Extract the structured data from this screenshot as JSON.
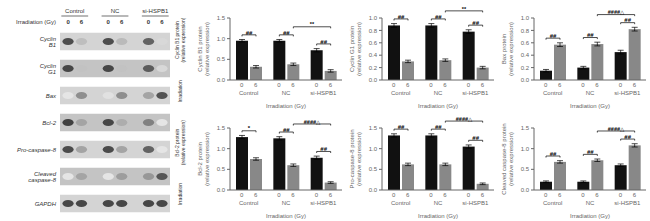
{
  "chart_data": [
    {
      "type": "heatmap",
      "xlabel": "Irradiation (Gy)",
      "categories": [
        "Control",
        "NC",
        "si-HSPB1"
      ],
      "lanes": [
        "0",
        "6"
      ],
      "rows": [
        "Cyclin B1",
        "Cyclin G1",
        "Bax",
        "Bcl-2",
        "Pro-caspase-8",
        "Cleaved caspase-8",
        "GAPDH"
      ],
      "cells": [
        [
          0.82,
          0.3,
          0.82,
          0.32,
          0.72,
          0.18
        ],
        [
          0.85,
          0.28,
          0.85,
          0.28,
          0.75,
          0.18
        ],
        [
          0.12,
          0.52,
          0.14,
          0.52,
          0.42,
          0.8
        ],
        [
          0.88,
          0.42,
          0.85,
          0.38,
          0.58,
          0.12
        ],
        [
          0.83,
          0.42,
          0.83,
          0.42,
          0.72,
          0.12
        ],
        [
          0.12,
          0.42,
          0.12,
          0.45,
          0.48,
          0.78
        ],
        [
          0.85,
          0.85,
          0.85,
          0.85,
          0.85,
          0.85
        ]
      ],
      "annotations": [
        "Cyclin B1 protein\n(relative expression)",
        "Irradiation",
        "Bcl-2 protein\n(relative expression)",
        "Irradiation"
      ]
    },
    {
      "type": "bar",
      "ylabel": "Cyclin B1 protein\n(relative expression)",
      "xlabel": "Irradiation (Gy)",
      "categories": [
        "Control",
        "NC",
        "si-HSPB1"
      ],
      "series": [
        {
          "name": "0",
          "color": "#111111",
          "values": [
            0.95,
            0.95,
            0.72
          ],
          "errors": [
            0.03,
            0.03,
            0.04
          ]
        },
        {
          "name": "6",
          "color": "#888888",
          "values": [
            0.32,
            0.38,
            0.22
          ],
          "errors": [
            0.03,
            0.03,
            0.03
          ]
        }
      ],
      "ylim": [
        0,
        1.5
      ],
      "yticks": [
        {
          "value": 0,
          "label": "0.0"
        },
        0.5,
        {
          "value": 1,
          "label": "1.0"
        },
        1.5
      ],
      "within_sig": [
        "##",
        "##",
        "##"
      ],
      "between_sig": "**",
      "between_groups": [
        1,
        2
      ]
    },
    {
      "type": "bar",
      "ylabel": "Cyclin G1 protein\n(relative expression)",
      "xlabel": "Irradiation (Gy)",
      "categories": [
        "Control",
        "NC",
        "si-HSPB1"
      ],
      "series": [
        {
          "name": "0",
          "color": "#111111",
          "values": [
            0.88,
            0.88,
            0.78
          ],
          "errors": [
            0.03,
            0.03,
            0.03
          ]
        },
        {
          "name": "6",
          "color": "#888888",
          "values": [
            0.3,
            0.32,
            0.2
          ],
          "errors": [
            0.02,
            0.02,
            0.02
          ]
        }
      ],
      "ylim": [
        0,
        1
      ],
      "yticks": [
        {
          "value": 0,
          "label": "0.0"
        },
        0.2,
        0.4,
        0.6,
        0.8,
        {
          "value": 1,
          "label": "1.0"
        }
      ],
      "within_sig": [
        "##",
        "##",
        "##"
      ],
      "between_sig": "**",
      "between_groups": [
        1,
        2
      ]
    },
    {
      "type": "bar",
      "ylabel": "Bax protein\n(relative expression)",
      "xlabel": "Irradiation (Gy)",
      "categories": [
        "Control",
        "NC",
        "si-HSPB1"
      ],
      "series": [
        {
          "name": "0",
          "color": "#111111",
          "values": [
            0.15,
            0.2,
            0.45
          ],
          "errors": [
            0.02,
            0.02,
            0.03
          ]
        },
        {
          "name": "6",
          "color": "#888888",
          "values": [
            0.57,
            0.58,
            0.82
          ],
          "errors": [
            0.03,
            0.03,
            0.03
          ]
        }
      ],
      "ylim": [
        0,
        1
      ],
      "yticks": [
        {
          "value": 0,
          "label": "0.0"
        },
        0.2,
        0.4,
        0.6,
        0.8,
        {
          "value": 1,
          "label": "1.0"
        }
      ],
      "within_sig": [
        "##",
        "##",
        "##"
      ],
      "between_sig": "####△",
      "between_groups": [
        1,
        2
      ]
    },
    {
      "type": "bar",
      "ylabel": "Bcl-2 protein\n(relative expression)",
      "xlabel": "Irradiation (Gy)",
      "categories": [
        "Control",
        "NC",
        "si-HSPB1"
      ],
      "series": [
        {
          "name": "0",
          "color": "#111111",
          "values": [
            1.28,
            1.25,
            0.78
          ],
          "errors": [
            0.04,
            0.04,
            0.04
          ]
        },
        {
          "name": "6",
          "color": "#888888",
          "values": [
            0.75,
            0.6,
            0.18
          ],
          "errors": [
            0.03,
            0.03,
            0.02
          ]
        }
      ],
      "ylim": [
        0,
        1.5
      ],
      "yticks": [
        {
          "value": 0,
          "label": "0.0"
        },
        0.5,
        {
          "value": 1,
          "label": "1.0"
        },
        1.5
      ],
      "within_sig": [
        "*",
        "##",
        "##"
      ],
      "between_sig": "####△",
      "between_groups": [
        1,
        2
      ]
    },
    {
      "type": "bar",
      "ylabel": "Pro-caspase-8 protein\n(relative expression)",
      "xlabel": "Irradiation (Gy)",
      "categories": [
        "Control",
        "NC",
        "si-HSPB1"
      ],
      "series": [
        {
          "name": "0",
          "color": "#111111",
          "values": [
            1.32,
            1.32,
            1.05
          ],
          "errors": [
            0.04,
            0.04,
            0.04
          ]
        },
        {
          "name": "6",
          "color": "#888888",
          "values": [
            0.62,
            0.62,
            0.15
          ],
          "errors": [
            0.03,
            0.03,
            0.02
          ]
        }
      ],
      "ylim": [
        0,
        1.5
      ],
      "yticks": [
        {
          "value": 0,
          "label": "0.0"
        },
        0.5,
        {
          "value": 1,
          "label": "1.0"
        },
        1.5
      ],
      "within_sig": [
        "##",
        "##",
        "##"
      ],
      "between_sig": "####△",
      "between_groups": [
        1,
        2
      ]
    },
    {
      "type": "bar",
      "ylabel": "Cleaved caspase-8 protein\n(relative expression)",
      "xlabel": "Irradiation (Gy)",
      "categories": [
        "Control",
        "NC",
        "si-HSPB1"
      ],
      "series": [
        {
          "name": "0",
          "color": "#111111",
          "values": [
            0.2,
            0.2,
            0.6
          ],
          "errors": [
            0.02,
            0.02,
            0.03
          ]
        },
        {
          "name": "6",
          "color": "#888888",
          "values": [
            0.68,
            0.72,
            1.08
          ],
          "errors": [
            0.03,
            0.03,
            0.04
          ]
        }
      ],
      "ylim": [
        0,
        1.5
      ],
      "yticks": [
        {
          "value": 0,
          "label": "0.0"
        },
        0.5,
        {
          "value": 1,
          "label": "1.0"
        },
        1.5
      ],
      "within_sig": [
        "##",
        "##",
        "##"
      ],
      "between_sig": "####△",
      "between_groups": [
        1,
        2
      ]
    }
  ]
}
